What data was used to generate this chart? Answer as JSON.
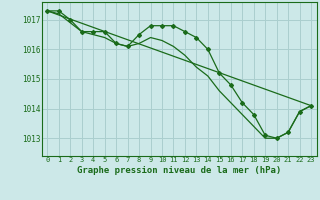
{
  "title": "Graphe pression niveau de la mer (hPa)",
  "background_color": "#cce8e8",
  "grid_color": "#aacece",
  "line_color": "#1a6b1a",
  "xlim": [
    -0.5,
    23.5
  ],
  "ylim": [
    1012.4,
    1017.6
  ],
  "yticks": [
    1013,
    1014,
    1015,
    1016,
    1017
  ],
  "xticks": [
    0,
    1,
    2,
    3,
    4,
    5,
    6,
    7,
    8,
    9,
    10,
    11,
    12,
    13,
    14,
    15,
    16,
    17,
    18,
    19,
    20,
    21,
    22,
    23
  ],
  "series": [
    {
      "x": [
        0,
        1,
        2,
        3,
        4,
        5,
        6,
        7,
        8,
        9,
        10,
        11,
        12,
        13,
        14,
        15,
        16,
        17,
        18,
        19,
        20,
        21,
        22,
        23
      ],
      "y": [
        1017.3,
        1017.3,
        1017.0,
        1016.6,
        1016.6,
        1016.6,
        1016.2,
        1016.1,
        1016.5,
        1016.8,
        1016.8,
        1016.8,
        1016.6,
        1016.4,
        1016.0,
        1015.2,
        1014.8,
        1014.2,
        1013.8,
        1013.1,
        1013.0,
        1013.2,
        1013.9,
        1014.1
      ],
      "marker": true
    },
    {
      "x": [
        0,
        23
      ],
      "y": [
        1017.3,
        1014.1
      ],
      "marker": false
    },
    {
      "x": [
        0,
        1,
        2,
        3,
        4,
        5,
        6,
        7,
        8,
        9,
        10,
        11,
        12,
        13,
        14,
        15,
        16,
        17,
        18,
        19,
        20,
        21,
        22,
        23
      ],
      "y": [
        1017.3,
        1017.2,
        1016.9,
        1016.6,
        1016.5,
        1016.4,
        1016.2,
        1016.1,
        1016.2,
        1016.4,
        1016.3,
        1016.1,
        1015.8,
        1015.4,
        1015.1,
        1014.6,
        1014.2,
        1013.8,
        1013.4,
        1013.0,
        1013.0,
        1013.2,
        1013.9,
        1014.1
      ],
      "marker": false
    }
  ]
}
